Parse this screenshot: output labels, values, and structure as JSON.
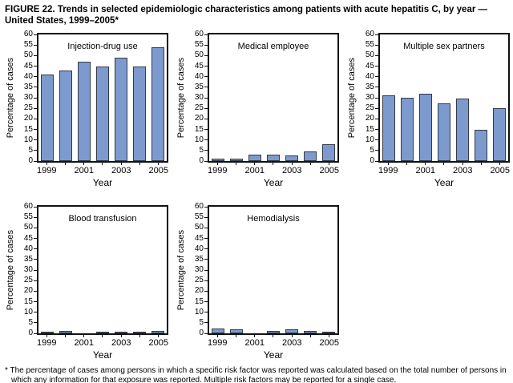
{
  "figure": {
    "title": "FIGURE 22. Trends in selected epidemiologic characteristics among patients with acute hepatitis C, by year — United States, 1999–2005*",
    "footnote": "* The percentage of cases among persons in which a specific risk factor was reported was calculated based on the total number of persons in which any information for that exposure was reported. Multiple risk factors may be reported for a single case."
  },
  "style": {
    "bar_fill": "#7c9ace",
    "bar_border": "#343a46",
    "axis_color": "#111111"
  },
  "chart_data": [
    {
      "type": "bar",
      "title": "Injection-drug use",
      "categories": [
        "1999",
        "2000",
        "2001",
        "2002",
        "2003",
        "2004",
        "2005"
      ],
      "values": [
        41,
        43,
        47,
        45,
        49,
        45,
        54
      ],
      "xlabel": "Year",
      "ylabel": "Percentage of cases",
      "ylim": [
        0,
        60
      ],
      "ytick_step": 5,
      "xtick_labels": [
        "1999",
        "",
        "2001",
        "",
        "2003",
        "",
        "2005"
      ],
      "grid": false,
      "legend": "none"
    },
    {
      "type": "bar",
      "title": "Medical employee",
      "categories": [
        "1999",
        "2000",
        "2001",
        "2002",
        "2003",
        "2004",
        "2005"
      ],
      "values": [
        1,
        1,
        3,
        3,
        2.5,
        4.5,
        8
      ],
      "xlabel": "Year",
      "ylabel": "Percentage of cases",
      "ylim": [
        0,
        60
      ],
      "ytick_step": 5,
      "xtick_labels": [
        "1999",
        "",
        "2001",
        "",
        "2003",
        "",
        "2005"
      ],
      "grid": false,
      "legend": "none"
    },
    {
      "type": "bar",
      "title": "Multiple sex partners",
      "categories": [
        "1999",
        "2000",
        "2001",
        "2002",
        "2003",
        "2004",
        "2005"
      ],
      "values": [
        31,
        30,
        32,
        27.5,
        29.5,
        15,
        25
      ],
      "xlabel": "Year",
      "ylabel": "Percentage of cases",
      "ylim": [
        0,
        60
      ],
      "ytick_step": 5,
      "xtick_labels": [
        "1999",
        "",
        "2001",
        "",
        "2003",
        "",
        "2005"
      ],
      "grid": false,
      "legend": "none"
    },
    {
      "type": "bar",
      "title": "Blood transfusion",
      "categories": [
        "1999",
        "2000",
        "2001",
        "2002",
        "2003",
        "2004",
        "2005"
      ],
      "values": [
        0.7,
        1,
        0,
        0.5,
        0.7,
        0.7,
        1.2
      ],
      "xlabel": "Year",
      "ylabel": "Percentage of cases",
      "ylim": [
        0,
        60
      ],
      "ytick_step": 5,
      "xtick_labels": [
        "1999",
        "",
        "2001",
        "",
        "2003",
        "",
        "2005"
      ],
      "grid": false,
      "legend": "none"
    },
    {
      "type": "bar",
      "title": "Hemodialysis",
      "categories": [
        "1999",
        "2000",
        "2001",
        "2002",
        "2003",
        "2004",
        "2005"
      ],
      "values": [
        2.3,
        2,
        0,
        1,
        2,
        1,
        0.5
      ],
      "xlabel": "Year",
      "ylabel": "Percentage of cases",
      "ylim": [
        0,
        60
      ],
      "ytick_step": 5,
      "xtick_labels": [
        "1999",
        "",
        "2001",
        "",
        "2003",
        "",
        "2005"
      ],
      "grid": false,
      "legend": "none"
    }
  ]
}
